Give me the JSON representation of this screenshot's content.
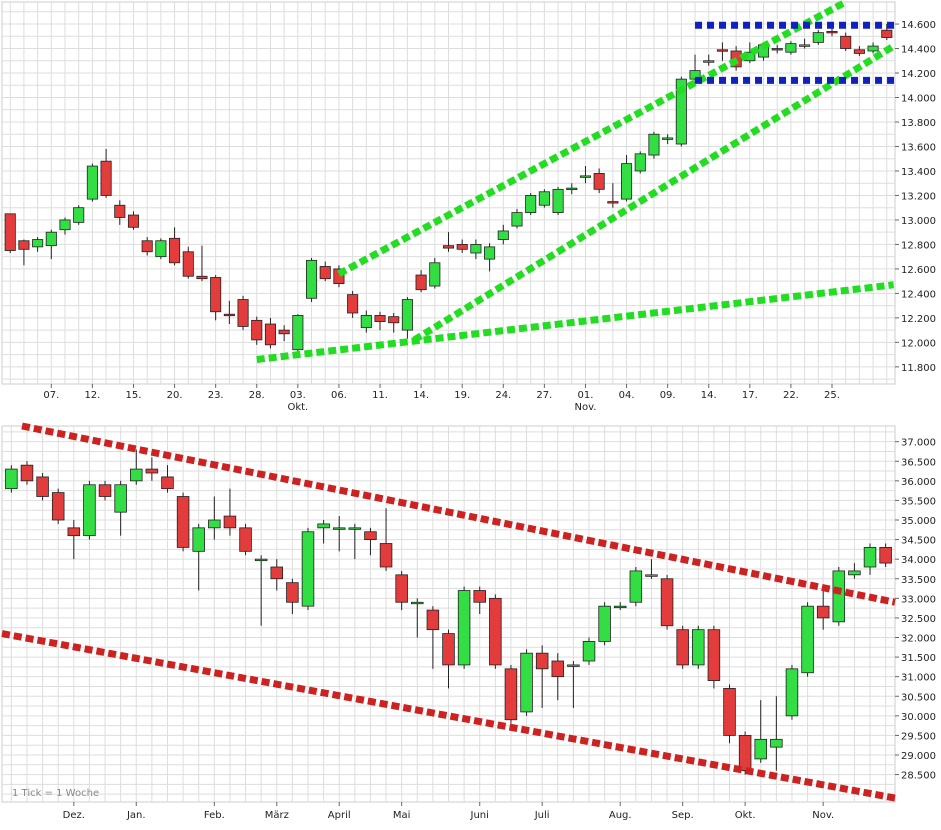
{
  "colors": {
    "up": "#33dd44",
    "down": "#e23c3c",
    "channel_top": "#22dd22",
    "channel_bottom": "#cc2222",
    "range_box": "#1122bb",
    "grid": "#dddddd"
  },
  "chart_data": [
    {
      "type": "candlestick",
      "x_tick_labels": [
        "07.",
        "12.",
        "15.",
        "20.",
        "23.",
        "28.",
        "03.",
        "06.",
        "11.",
        "14.",
        "19.",
        "24.",
        "27.",
        "01.",
        "04.",
        "09.",
        "14.",
        "17.",
        "22.",
        "25."
      ],
      "month_labels": [
        "Okt.",
        "Nov."
      ],
      "y_tick_labels": [
        "11.800",
        "12.000",
        "12.200",
        "12.400",
        "12.600",
        "12.800",
        "13.000",
        "13.200",
        "13.400",
        "13.600",
        "13.800",
        "14.000",
        "14.200",
        "14.400",
        "14.600"
      ],
      "ylim": [
        11.66,
        14.78
      ],
      "candles": [
        [
          13.05,
          12.75,
          13.05,
          12.73
        ],
        [
          12.83,
          12.76,
          12.84,
          12.63
        ],
        [
          12.78,
          12.84,
          12.86,
          12.74
        ],
        [
          12.79,
          12.9,
          12.92,
          12.68
        ],
        [
          12.92,
          13.0,
          13.02,
          12.88
        ],
        [
          12.98,
          13.1,
          13.12,
          12.96
        ],
        [
          13.17,
          13.44,
          13.46,
          13.15
        ],
        [
          13.48,
          13.2,
          13.58,
          13.18
        ],
        [
          13.12,
          13.02,
          13.16,
          12.96
        ],
        [
          13.04,
          12.94,
          13.07,
          12.92
        ],
        [
          12.83,
          12.74,
          12.86,
          12.71
        ],
        [
          12.7,
          12.83,
          12.85,
          12.68
        ],
        [
          12.85,
          12.65,
          12.94,
          12.63
        ],
        [
          12.74,
          12.54,
          12.78,
          12.52
        ],
        [
          12.54,
          12.52,
          12.79,
          12.5
        ],
        [
          12.53,
          12.25,
          12.55,
          12.18
        ],
        [
          12.23,
          12.22,
          12.34,
          12.15
        ],
        [
          12.35,
          12.13,
          12.38,
          12.1
        ],
        [
          12.18,
          12.02,
          12.21,
          11.98
        ],
        [
          12.15,
          11.98,
          12.2,
          11.95
        ],
        [
          12.1,
          12.07,
          12.14,
          12.01
        ],
        [
          11.94,
          12.22,
          12.23,
          11.92
        ],
        [
          12.36,
          12.67,
          12.69,
          12.33
        ],
        [
          12.62,
          12.52,
          12.66,
          12.5
        ],
        [
          12.6,
          12.48,
          12.63,
          12.45
        ],
        [
          12.39,
          12.24,
          12.42,
          12.2
        ],
        [
          12.12,
          12.22,
          12.26,
          12.08
        ],
        [
          12.22,
          12.17,
          12.25,
          12.1
        ],
        [
          12.21,
          12.16,
          12.24,
          12.08
        ],
        [
          12.1,
          12.35,
          12.37,
          12.03
        ],
        [
          12.55,
          12.43,
          12.59,
          12.41
        ],
        [
          12.46,
          12.65,
          12.69,
          12.44
        ],
        [
          12.79,
          12.77,
          12.9,
          12.74
        ],
        [
          12.8,
          12.76,
          12.84,
          12.73
        ],
        [
          12.73,
          12.8,
          12.84,
          12.68
        ],
        [
          12.68,
          12.78,
          12.81,
          12.58
        ],
        [
          12.84,
          12.91,
          12.96,
          12.8
        ],
        [
          12.95,
          13.06,
          13.09,
          12.93
        ],
        [
          13.06,
          13.2,
          13.22,
          13.04
        ],
        [
          13.12,
          13.23,
          13.25,
          13.1
        ],
        [
          13.06,
          13.25,
          13.27,
          13.04
        ],
        [
          13.25,
          13.26,
          13.3,
          13.21
        ],
        [
          13.35,
          13.36,
          13.44,
          13.3
        ],
        [
          13.38,
          13.25,
          13.42,
          13.22
        ],
        [
          13.15,
          13.14,
          13.3,
          13.1
        ],
        [
          13.17,
          13.46,
          13.53,
          13.15
        ],
        [
          13.4,
          13.54,
          13.56,
          13.38
        ],
        [
          13.53,
          13.7,
          13.72,
          13.5
        ],
        [
          13.66,
          13.67,
          13.7,
          13.62
        ],
        [
          13.62,
          14.15,
          14.17,
          13.6
        ],
        [
          14.15,
          14.22,
          14.35,
          14.12
        ],
        [
          14.29,
          14.3,
          14.35,
          14.26
        ],
        [
          14.39,
          14.38,
          14.45,
          14.3
        ],
        [
          14.38,
          14.25,
          14.42,
          14.22
        ],
        [
          14.3,
          14.37,
          14.45,
          14.28
        ],
        [
          14.33,
          14.43,
          14.45,
          14.3
        ],
        [
          14.4,
          14.39,
          14.43,
          14.36
        ],
        [
          14.37,
          14.44,
          14.46,
          14.35
        ],
        [
          14.42,
          14.43,
          14.48,
          14.4
        ],
        [
          14.45,
          14.53,
          14.55,
          14.43
        ],
        [
          14.54,
          14.53,
          14.58,
          14.5
        ],
        [
          14.5,
          14.4,
          14.53,
          14.38
        ],
        [
          14.39,
          14.36,
          14.42,
          14.34
        ],
        [
          14.38,
          14.42,
          14.45,
          14.36
        ],
        [
          14.55,
          14.49,
          14.6,
          14.47
        ]
      ]
    },
    {
      "type": "candlestick",
      "x_tick_labels": [
        "Dez.",
        "Jan.",
        "Feb.",
        "März",
        "April",
        "Mai",
        "Juni",
        "Juli",
        "Aug.",
        "Sep.",
        "Okt.",
        "Nov."
      ],
      "y_tick_labels": [
        "28.500",
        "29.000",
        "29.500",
        "30.000",
        "30.500",
        "31.000",
        "31.500",
        "32.000",
        "32.500",
        "33.000",
        "33.500",
        "34.000",
        "34.500",
        "35.000",
        "35.500",
        "36.000",
        "36.500",
        "37.000"
      ],
      "ylim": [
        27.8,
        37.4
      ],
      "note": "1 Tick = 1 Woche",
      "candles": [
        [
          35.8,
          36.3,
          36.4,
          35.7
        ],
        [
          36.4,
          36.0,
          36.5,
          35.9
        ],
        [
          36.1,
          35.6,
          36.2,
          35.5
        ],
        [
          35.7,
          35.0,
          35.8,
          34.9
        ],
        [
          34.8,
          34.6,
          35.0,
          34.0
        ],
        [
          34.6,
          35.9,
          36.0,
          34.5
        ],
        [
          35.9,
          35.6,
          36.0,
          35.5
        ],
        [
          35.2,
          35.9,
          36.0,
          34.6
        ],
        [
          36.0,
          36.3,
          36.8,
          35.9
        ],
        [
          36.3,
          36.2,
          36.6,
          36.0
        ],
        [
          36.1,
          35.8,
          36.4,
          35.7
        ],
        [
          35.6,
          34.3,
          35.7,
          34.2
        ],
        [
          34.2,
          34.8,
          34.9,
          33.2
        ],
        [
          34.8,
          35.0,
          35.6,
          34.5
        ],
        [
          35.1,
          34.8,
          35.8,
          34.6
        ],
        [
          34.8,
          34.2,
          34.9,
          34.1
        ],
        [
          34.0,
          34.0,
          34.1,
          32.3
        ],
        [
          33.8,
          33.5,
          34.0,
          33.2
        ],
        [
          33.4,
          32.9,
          33.5,
          32.6
        ],
        [
          32.8,
          34.7,
          34.8,
          32.7
        ],
        [
          34.8,
          34.9,
          35.0,
          34.4
        ],
        [
          34.8,
          34.8,
          35.1,
          34.2
        ],
        [
          34.8,
          34.8,
          34.9,
          34.0
        ],
        [
          34.7,
          34.5,
          34.8,
          34.1
        ],
        [
          34.4,
          33.8,
          35.3,
          33.7
        ],
        [
          33.6,
          32.9,
          33.7,
          32.7
        ],
        [
          32.9,
          32.9,
          33.0,
          32.0
        ],
        [
          32.7,
          32.2,
          32.8,
          31.2
        ],
        [
          32.1,
          31.3,
          32.2,
          30.7
        ],
        [
          31.3,
          33.2,
          33.3,
          31.2
        ],
        [
          33.2,
          32.9,
          33.3,
          32.6
        ],
        [
          33.0,
          31.3,
          33.1,
          31.2
        ],
        [
          31.2,
          29.9,
          31.3,
          29.8
        ],
        [
          30.1,
          31.6,
          31.7,
          30.0
        ],
        [
          31.6,
          31.2,
          31.8,
          30.2
        ],
        [
          31.4,
          31.0,
          31.6,
          30.4
        ],
        [
          31.3,
          31.3,
          31.4,
          30.2
        ],
        [
          31.4,
          31.9,
          32.0,
          31.3
        ],
        [
          31.9,
          32.8,
          32.9,
          31.8
        ],
        [
          32.8,
          32.8,
          32.9,
          32.7
        ],
        [
          32.9,
          33.7,
          33.8,
          32.8
        ],
        [
          33.6,
          33.6,
          34.0,
          33.5
        ],
        [
          33.5,
          32.3,
          33.6,
          32.2
        ],
        [
          32.2,
          31.3,
          32.3,
          31.2
        ],
        [
          31.3,
          32.2,
          32.3,
          31.2
        ],
        [
          32.2,
          30.9,
          32.3,
          30.7
        ],
        [
          30.7,
          29.5,
          30.8,
          29.3
        ],
        [
          29.5,
          28.6,
          29.6,
          28.5
        ],
        [
          28.9,
          29.4,
          30.4,
          28.8
        ],
        [
          29.2,
          29.4,
          30.5,
          28.6
        ],
        [
          30.0,
          31.2,
          31.3,
          29.9
        ],
        [
          31.1,
          32.8,
          32.9,
          31.0
        ],
        [
          32.8,
          32.5,
          33.3,
          32.2
        ],
        [
          32.4,
          33.7,
          33.8,
          32.3
        ],
        [
          33.6,
          33.7,
          33.9,
          33.5
        ],
        [
          33.8,
          34.3,
          34.4,
          33.6
        ],
        [
          34.3,
          33.9,
          34.4,
          33.8
        ]
      ]
    }
  ]
}
